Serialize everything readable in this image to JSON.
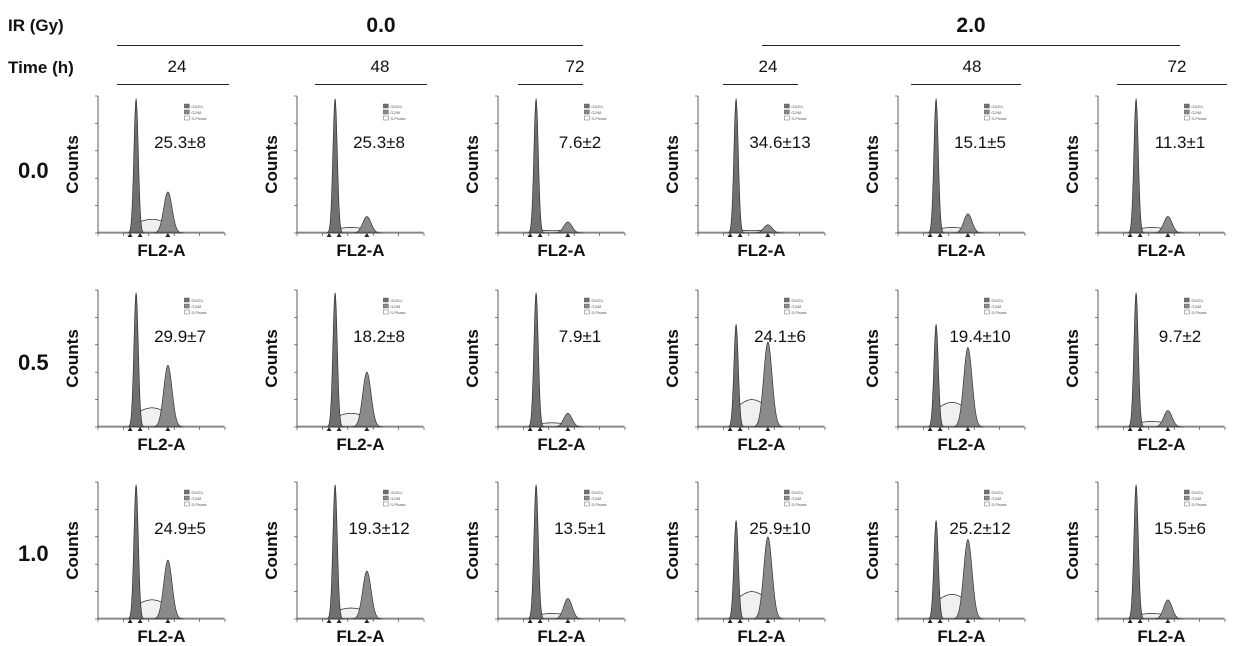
{
  "headers": {
    "ir_label": "IR (Gy)",
    "time_label": "Time (h)",
    "ir_groups": [
      "0.0",
      "2.0"
    ],
    "times": [
      "24",
      "48",
      "72",
      "24",
      "48",
      "72"
    ]
  },
  "rows": [
    "0.0",
    "0.5",
    "1.0"
  ],
  "axis": {
    "y": "Counts",
    "x": "FL2-A"
  },
  "legend": [
    "G0/G1",
    "G2/M",
    "S-Phase"
  ],
  "values": [
    [
      "25.3±8",
      "25.3±8",
      "7.6±2",
      "34.6±13",
      "15.1±5",
      "11.3±1"
    ],
    [
      "29.9±7",
      "18.2±8",
      "7.9±1",
      "24.1±6",
      "19.4±10",
      "9.7±2"
    ],
    [
      "24.9±5",
      "19.3±12",
      "13.5±1",
      "25.9±10",
      "25.2±12",
      "15.5±6"
    ]
  ],
  "colors": {
    "g1": "#707070",
    "g2": "#8a8a8a",
    "s": "#f0f0f0",
    "line": "#222222"
  }
}
